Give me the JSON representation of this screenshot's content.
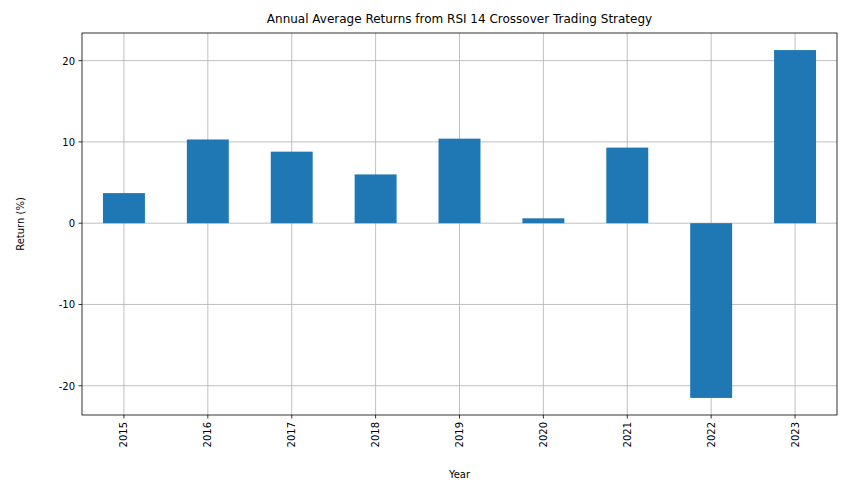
{
  "chart_data": {
    "type": "bar",
    "title": "Annual Average Returns from RSI 14 Crossover Trading Strategy",
    "x_label": "Year",
    "y_label": "Return (%)",
    "categories": [
      "2015",
      "2016",
      "2017",
      "2018",
      "2019",
      "2020",
      "2021",
      "2022",
      "2023"
    ],
    "values": [
      3.7,
      10.3,
      8.8,
      6.0,
      10.4,
      0.6,
      9.3,
      -21.5,
      21.3
    ],
    "color": "#1f77b4",
    "ylim": [
      -23.6,
      23.4
    ],
    "yticks": [
      -20,
      -10,
      0,
      10,
      20
    ],
    "grid": true
  }
}
